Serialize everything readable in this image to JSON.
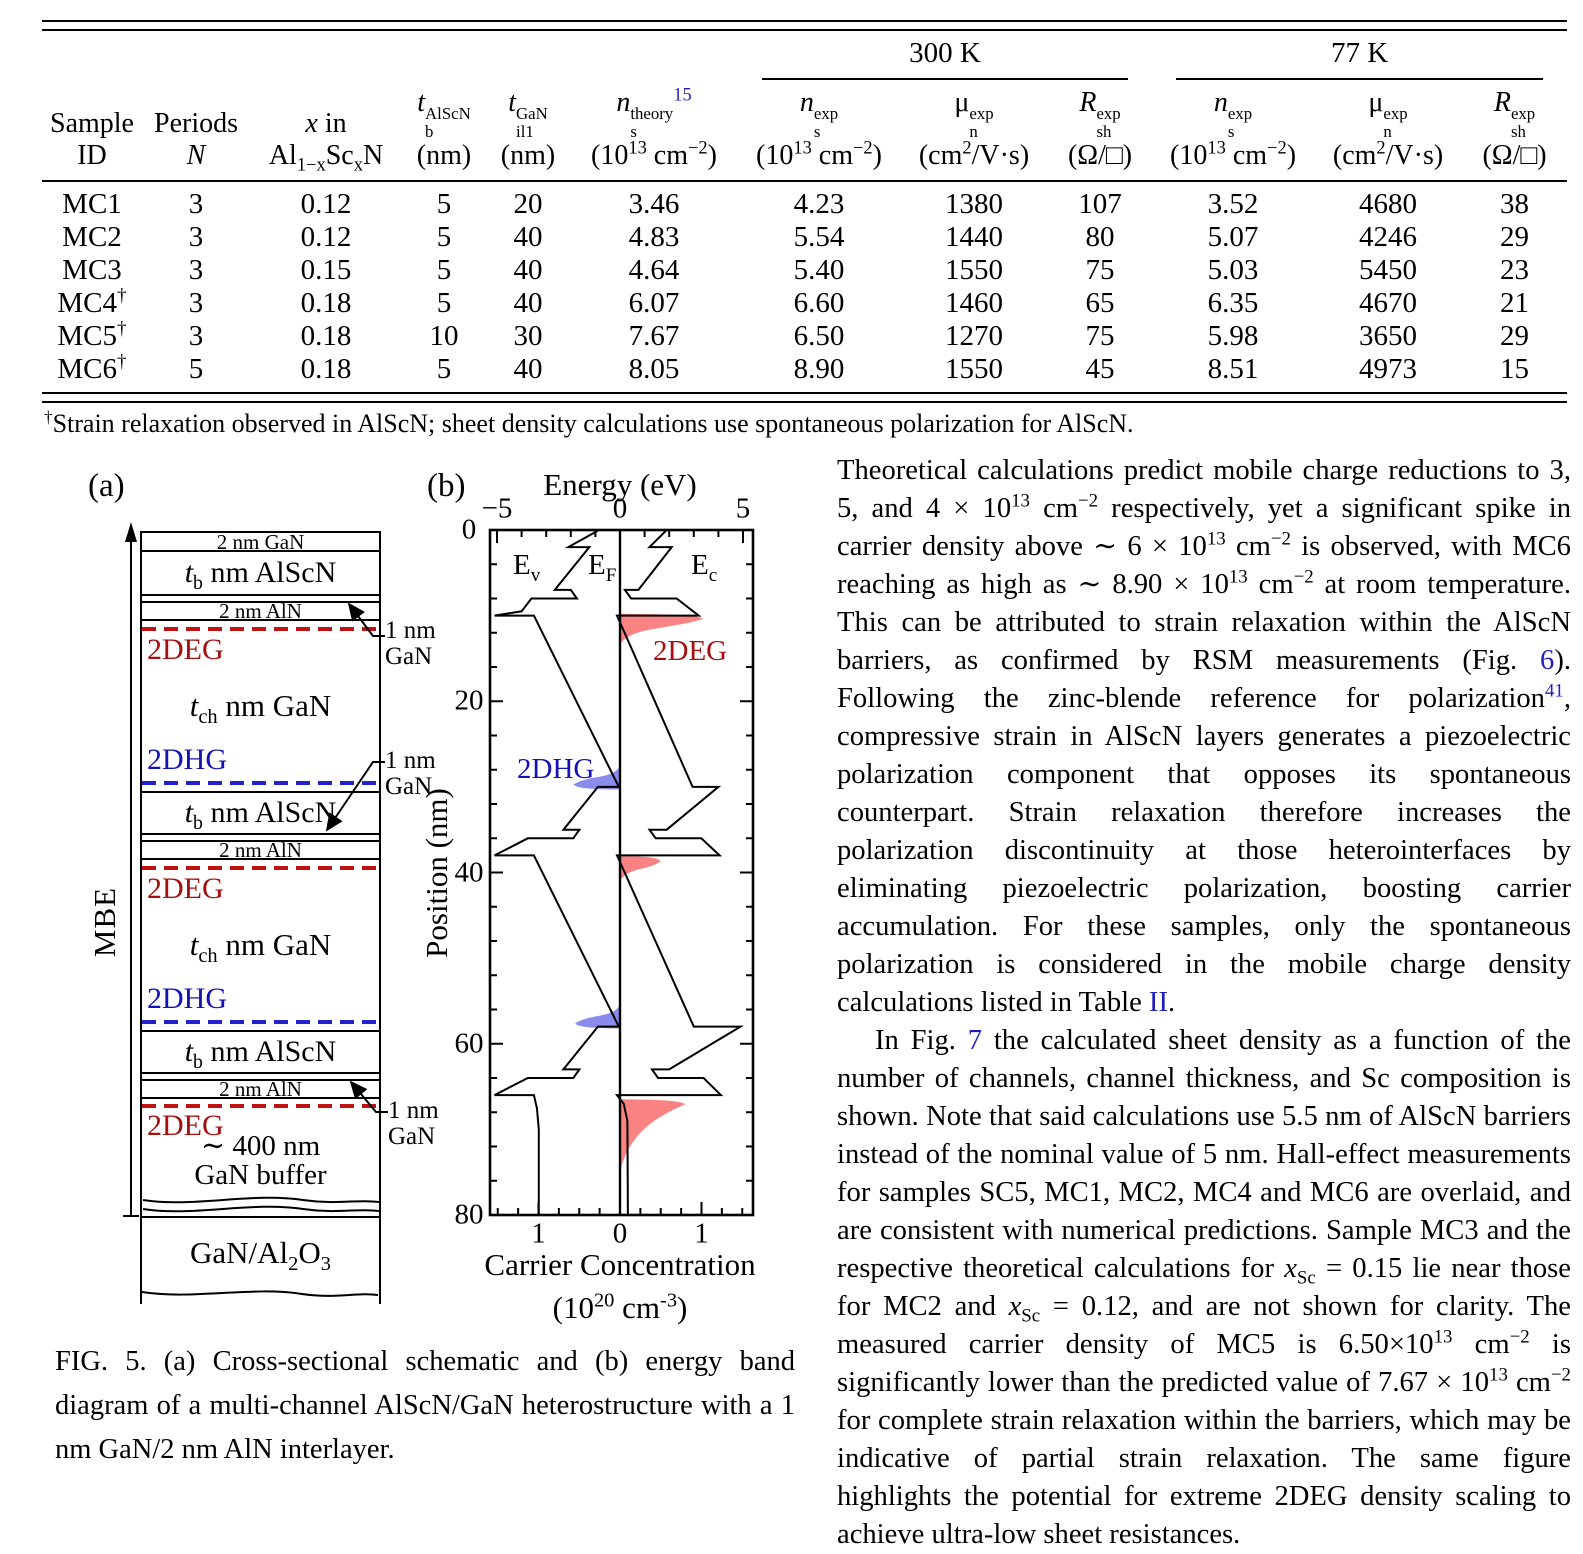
{
  "colors": {
    "ref_blue": "#1f1fbf",
    "deg_red": "#a50f0f",
    "dhg_blue": "#1212b8",
    "dash_red": "#c11212",
    "dash_blue": "#2222cc",
    "fill_red": "#f98383",
    "fill_blue": "#8b8bec"
  },
  "table": {
    "groups": [
      {
        "label": "300 K",
        "span": 3
      },
      {
        "label": "77 K",
        "span": 3
      }
    ],
    "columns": [
      {
        "l1": [
          [
            "",
            "Sample"
          ]
        ],
        "l2": [
          [
            "",
            "ID"
          ]
        ]
      },
      {
        "l1": [
          [
            "",
            "Periods"
          ]
        ],
        "l2": [
          [
            "i",
            "N"
          ]
        ]
      },
      {
        "l1": [
          [
            "i",
            "x"
          ],
          [
            "",
            " in"
          ]
        ],
        "l2": [
          [
            "",
            "Al"
          ],
          [
            "sub",
            "1−x"
          ],
          [
            "",
            "Sc"
          ],
          [
            "sub",
            "x"
          ],
          [
            "",
            "N"
          ]
        ]
      },
      {
        "l1": [
          [
            "i",
            "t"
          ],
          [
            "ss",
            "AlScN¦b"
          ]
        ],
        "l2": [
          [
            "",
            "(nm)"
          ]
        ]
      },
      {
        "l1": [
          [
            "i",
            "t"
          ],
          [
            "ss",
            "GaN¦il1"
          ]
        ],
        "l2": [
          [
            "",
            "(nm)"
          ]
        ]
      },
      {
        "l1": [
          [
            "i",
            "n"
          ],
          [
            "ss",
            "theory¦s"
          ],
          [
            "bsup",
            "15"
          ]
        ],
        "l2": [
          [
            "",
            "(10"
          ],
          [
            "sup",
            "13"
          ],
          [
            "",
            " cm"
          ],
          [
            "sup",
            "−2"
          ],
          [
            "",
            ")"
          ]
        ]
      },
      {
        "l1": [
          [
            "i",
            "n"
          ],
          [
            "ss",
            "exp¦s"
          ]
        ],
        "l2": [
          [
            "",
            "(10"
          ],
          [
            "sup",
            "13"
          ],
          [
            "",
            " cm"
          ],
          [
            "sup",
            "−2"
          ],
          [
            "",
            ")"
          ]
        ]
      },
      {
        "l1": [
          [
            "",
            "μ"
          ],
          [
            "ss",
            "exp¦n"
          ]
        ],
        "l2": [
          [
            "",
            "(cm"
          ],
          [
            "sup",
            "2"
          ],
          [
            "",
            "/V·s)"
          ]
        ]
      },
      {
        "l1": [
          [
            "i",
            "R"
          ],
          [
            "ss",
            "exp¦sh"
          ]
        ],
        "l2": [
          [
            "",
            "(Ω/□)"
          ]
        ]
      },
      {
        "l1": [
          [
            "i",
            "n"
          ],
          [
            "ss",
            "exp¦s"
          ]
        ],
        "l2": [
          [
            "",
            "(10"
          ],
          [
            "sup",
            "13"
          ],
          [
            "",
            " cm"
          ],
          [
            "sup",
            "−2"
          ],
          [
            "",
            ")"
          ]
        ]
      },
      {
        "l1": [
          [
            "",
            "μ"
          ],
          [
            "ss",
            "exp¦n"
          ]
        ],
        "l2": [
          [
            "",
            "(cm"
          ],
          [
            "sup",
            "2"
          ],
          [
            "",
            "/V·s)"
          ]
        ]
      },
      {
        "l1": [
          [
            "i",
            "R"
          ],
          [
            "ss",
            "exp¦sh"
          ]
        ],
        "l2": [
          [
            "",
            "(Ω/□)"
          ]
        ]
      }
    ],
    "rows": [
      {
        "id": [
          [
            "",
            "MC1"
          ]
        ],
        "cells": [
          "3",
          "0.12",
          "5",
          "20",
          "3.46",
          "4.23",
          "1380",
          "107",
          "3.52",
          "4680",
          "38"
        ]
      },
      {
        "id": [
          [
            "",
            "MC2"
          ]
        ],
        "cells": [
          "3",
          "0.12",
          "5",
          "40",
          "4.83",
          "5.54",
          "1440",
          "80",
          "5.07",
          "4246",
          "29"
        ]
      },
      {
        "id": [
          [
            "",
            "MC3"
          ]
        ],
        "cells": [
          "3",
          "0.15",
          "5",
          "40",
          "4.64",
          "5.40",
          "1550",
          "75",
          "5.03",
          "5450",
          "23"
        ]
      },
      {
        "id": [
          [
            "",
            "MC4"
          ],
          [
            "sup",
            "†"
          ]
        ],
        "cells": [
          "3",
          "0.18",
          "5",
          "40",
          "6.07",
          "6.60",
          "1460",
          "65",
          "6.35",
          "4670",
          "21"
        ]
      },
      {
        "id": [
          [
            "",
            "MC5"
          ],
          [
            "sup",
            "†"
          ]
        ],
        "cells": [
          "3",
          "0.18",
          "10",
          "30",
          "7.67",
          "6.50",
          "1270",
          "75",
          "5.98",
          "3650",
          "29"
        ]
      },
      {
        "id": [
          [
            "",
            "MC6"
          ],
          [
            "sup",
            "†"
          ]
        ],
        "cells": [
          "5",
          "0.18",
          "5",
          "40",
          "8.05",
          "8.90",
          "1550",
          "45",
          "8.51",
          "4973",
          "15"
        ]
      }
    ],
    "footnote": [
      [
        "sup",
        "†"
      ],
      [
        "",
        "Strain relaxation observed in AlScN; sheet density calculations use spontaneous polarization for AlScN."
      ]
    ]
  },
  "figure": {
    "label_a": "(a)",
    "label_b": "(b)",
    "schematic": {
      "mbe": "MBE",
      "cap": [
        [
          "",
          "2 nm GaN"
        ]
      ],
      "alscn": [
        [
          "i",
          "t"
        ],
        [
          "sub",
          "b"
        ],
        [
          "",
          " nm AlScN"
        ]
      ],
      "aln": [
        [
          "",
          "2 nm AlN"
        ]
      ],
      "channel": [
        [
          "i",
          "t"
        ],
        [
          "sub",
          "ch"
        ],
        [
          "",
          " nm GaN"
        ]
      ],
      "deg": "2DEG",
      "dhg": "2DHG",
      "buffer1": [
        [
          "",
          "∼ 400 nm"
        ]
      ],
      "buffer2": [
        [
          "",
          "GaN buffer"
        ]
      ],
      "substrate": [
        [
          "",
          "GaN/Al"
        ],
        [
          "sub",
          "2"
        ],
        [
          "",
          "O"
        ],
        [
          "sub",
          "3"
        ]
      ],
      "callout_l1": "1 nm",
      "callout_l2": "GaN"
    },
    "caption": [
      [
        "",
        "FIG. 5.   (a) Cross-sectional schematic and (b) energy band diagram of a multi-channel AlScN/GaN heterostructure with a 1 nm GaN/2 nm AlN interlayer."
      ]
    ]
  },
  "chart_data": {
    "type": "line",
    "title": "Energy band diagram of multi-channel AlScN/GaN heterostructure",
    "xlabel_top": "Energy (eV)",
    "xlabel_bottom_1": "Carrier Concentration",
    "xlabel_bottom_2": [
      [
        "",
        "(10"
      ],
      [
        "sup",
        "20"
      ],
      [
        "",
        " cm"
      ],
      [
        "sup",
        "-3"
      ],
      [
        "",
        ")"
      ]
    ],
    "ylabel": "Position (nm)",
    "energy_axis": {
      "range": [
        -5.3,
        5.4
      ],
      "ticks": [
        -5,
        0,
        5
      ],
      "tick_labels": [
        "−5",
        "0",
        "5"
      ],
      "minor_step": 1
    },
    "position_axis": {
      "range": [
        0,
        80
      ],
      "ticks": [
        0,
        20,
        40,
        60,
        80
      ],
      "tick_labels": [
        "0",
        "20",
        "40",
        "60",
        "80"
      ],
      "minor_step": 4
    },
    "concentration_axis": {
      "ticks": [
        -1,
        0,
        1
      ],
      "tick_labels": [
        "1",
        "0",
        "1"
      ],
      "minor_step": 0.25
    },
    "labels": {
      "ev": [
        [
          "",
          "E"
        ],
        [
          "sub",
          "v"
        ]
      ],
      "ef": [
        [
          "",
          "E"
        ],
        [
          "sub",
          "F"
        ]
      ],
      "ec": [
        [
          "",
          "E"
        ],
        [
          "sub",
          "c"
        ]
      ],
      "deg": "2DEG",
      "dhg": "2DHG"
    },
    "series": [
      {
        "name": "Ec",
        "points": [
          [
            1.9,
            0
          ],
          [
            1.2,
            2
          ],
          [
            2.1,
            2
          ],
          [
            0.75,
            7
          ],
          [
            0.2,
            7
          ],
          [
            0.45,
            8
          ],
          [
            2.3,
            8
          ],
          [
            3.2,
            10
          ],
          [
            -0.12,
            10
          ],
          [
            2.95,
            30
          ],
          [
            4.0,
            30
          ],
          [
            1.9,
            35
          ],
          [
            1.2,
            35
          ],
          [
            1.45,
            36
          ],
          [
            3.3,
            36
          ],
          [
            4.05,
            38
          ],
          [
            -0.12,
            38
          ],
          [
            3.0,
            58
          ],
          [
            4.9,
            58
          ],
          [
            2.0,
            63
          ],
          [
            1.3,
            63
          ],
          [
            1.55,
            64
          ],
          [
            3.4,
            64
          ],
          [
            4.1,
            66
          ],
          [
            -0.12,
            66
          ],
          [
            0.15,
            67
          ],
          [
            0.3,
            69
          ],
          [
            0.32,
            80
          ]
        ]
      },
      {
        "name": "Ev",
        "points": [
          [
            -0.85,
            0
          ],
          [
            -2.1,
            2
          ],
          [
            -1.25,
            2
          ],
          [
            -2.65,
            7
          ],
          [
            -2.0,
            7
          ],
          [
            -1.75,
            8
          ],
          [
            -3.6,
            8
          ],
          [
            -4.0,
            9.5
          ],
          [
            -5.1,
            10
          ],
          [
            -3.5,
            10
          ],
          [
            -0.05,
            30
          ],
          [
            -0.9,
            30
          ],
          [
            -2.3,
            35
          ],
          [
            -1.65,
            35
          ],
          [
            -1.9,
            36
          ],
          [
            -3.75,
            36
          ],
          [
            -5.1,
            38
          ],
          [
            -3.5,
            38
          ],
          [
            -0.05,
            58
          ],
          [
            -0.9,
            58
          ],
          [
            -2.3,
            63
          ],
          [
            -1.65,
            63
          ],
          [
            -1.9,
            64
          ],
          [
            -3.75,
            64
          ],
          [
            -5.1,
            66
          ],
          [
            -3.5,
            66
          ],
          [
            -3.38,
            67.5
          ],
          [
            -3.3,
            70
          ],
          [
            -3.3,
            80
          ]
        ]
      },
      {
        "name": "EF",
        "points": [
          [
            0,
            0
          ],
          [
            0,
            80
          ]
        ]
      }
    ],
    "peaks": [
      {
        "name": "2DEG",
        "color": "red",
        "pos_nm": 9.8,
        "amp_1e20": 1.02,
        "tail_nm": 3.6
      },
      {
        "name": "2DEG",
        "color": "red",
        "pos_nm": 38.1,
        "amp_1e20": 0.5,
        "tail_nm": 2.9
      },
      {
        "name": "2DEG",
        "color": "red",
        "pos_nm": 66.5,
        "amp_1e20": 0.8,
        "tail_nm": 8.5
      },
      {
        "name": "2DHG",
        "color": "blue",
        "pos_nm": 30.3,
        "amp_1e20": 0.57,
        "tail_nm": 2.7
      },
      {
        "name": "2DHG",
        "color": "blue",
        "pos_nm": 58.2,
        "amp_1e20": 0.55,
        "tail_nm": 2.7
      }
    ]
  },
  "text_column": {
    "p1": [
      [
        "",
        "Theoretical calculations predict mobile charge reductions to 3, 5, and 4 × 10"
      ],
      [
        "sup",
        "13"
      ],
      [
        "",
        " cm"
      ],
      [
        "sup",
        "−2"
      ],
      [
        "",
        " respectively, yet a significant spike in carrier density above ∼ 6 × 10"
      ],
      [
        "sup",
        "13"
      ],
      [
        "",
        " cm"
      ],
      [
        "sup",
        "−2"
      ],
      [
        "",
        " is observed, with MC6 reaching as high as ∼ 8.90 × 10"
      ],
      [
        "sup",
        "13"
      ],
      [
        "",
        " cm"
      ],
      [
        "sup",
        "−2"
      ],
      [
        "",
        " at room temperature. This can be attributed to strain relaxation within the AlScN barriers, as confirmed by RSM measurements (Fig. "
      ],
      [
        "blue",
        "6"
      ],
      [
        "",
        "). Following the zinc-blende reference for polarization"
      ],
      [
        "bsup",
        "41"
      ],
      [
        "",
        ", compressive strain in AlScN layers generates a piezoelectric polarization component that opposes its spontaneous counterpart. Strain relaxation therefore increases the polarization discontinuity at those heterointerfaces by eliminating piezoelectric polarization, boosting carrier accumulation. For these samples, only the spontaneous polarization is considered in the mobile charge density calculations listed in Table "
      ],
      [
        "blue",
        "II"
      ],
      [
        "",
        "."
      ]
    ],
    "p2": [
      [
        "",
        "In Fig. "
      ],
      [
        "blue",
        "7"
      ],
      [
        "",
        " the calculated sheet density as a function of the number of channels, channel thickness, and Sc composition is shown. Note that said calculations use 5.5 nm of AlScN barriers instead of the nominal value of 5 nm. Hall-effect measurements for samples SC5, MC1, MC2, MC4 and MC6 are overlaid, and are consistent with numerical predictions. Sample MC3 and the respective theoretical calculations for "
      ],
      [
        "i",
        "x"
      ],
      [
        "sub",
        "Sc"
      ],
      [
        "",
        " = 0.15 lie near those for MC2 and "
      ],
      [
        "i",
        "x"
      ],
      [
        "sub",
        "Sc"
      ],
      [
        "",
        " = 0.12, and are not shown for clarity. The measured carrier density of MC5 is 6.50×10"
      ],
      [
        "sup",
        "13"
      ],
      [
        "",
        " cm"
      ],
      [
        "sup",
        "−2"
      ],
      [
        "",
        " is significantly lower than the predicted value of 7.67 × 10"
      ],
      [
        "sup",
        "13"
      ],
      [
        "",
        " cm"
      ],
      [
        "sup",
        "−2"
      ],
      [
        "",
        " for complete strain relaxation within the barriers, which may be indicative of partial strain relaxation. The same figure highlights the potential for extreme 2DEG density scaling to achieve ultra-low sheet resistances."
      ]
    ]
  }
}
